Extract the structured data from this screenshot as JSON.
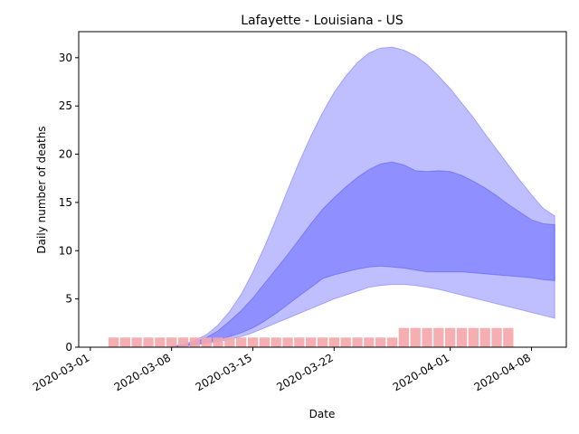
{
  "chart_data": {
    "type": "area",
    "title": "Lafayette - Louisiana - US",
    "xlabel": "Date",
    "ylabel": "Daily number of deaths",
    "x_ticks": [
      "2020-03-01",
      "2020-03-08",
      "2020-03-15",
      "2020-03-22",
      "2020-04-01",
      "2020-04-08"
    ],
    "y_ticks": [
      0,
      5,
      10,
      15,
      20,
      25,
      30
    ],
    "xlim": [
      "2020-02-29",
      "2020-04-11"
    ],
    "ylim": [
      0,
      32.7
    ],
    "grid": false,
    "colors": {
      "band": "#0000ff",
      "bars": "#f4a6ab"
    },
    "bars": {
      "dates": [
        "2020-03-03",
        "2020-03-04",
        "2020-03-05",
        "2020-03-06",
        "2020-03-07",
        "2020-03-08",
        "2020-03-09",
        "2020-03-10",
        "2020-03-11",
        "2020-03-12",
        "2020-03-13",
        "2020-03-14",
        "2020-03-15",
        "2020-03-16",
        "2020-03-17",
        "2020-03-18",
        "2020-03-19",
        "2020-03-20",
        "2020-03-21",
        "2020-03-22",
        "2020-03-23",
        "2020-03-24",
        "2020-03-25",
        "2020-03-26",
        "2020-03-27",
        "2020-03-28",
        "2020-03-29",
        "2020-03-30",
        "2020-03-31",
        "2020-04-01",
        "2020-04-02",
        "2020-04-03",
        "2020-04-04",
        "2020-04-05",
        "2020-04-06"
      ],
      "values": [
        1,
        1,
        1,
        1,
        1,
        1,
        1,
        1,
        1,
        1,
        1,
        1,
        1,
        1,
        1,
        1,
        1,
        1,
        1,
        1,
        1,
        1,
        1,
        1,
        1,
        2,
        2,
        2,
        2,
        2,
        2,
        2,
        2,
        2,
        2
      ]
    },
    "bands": [
      {
        "dates": [
          "2020-03-08",
          "2020-03-09",
          "2020-03-10",
          "2020-03-11",
          "2020-03-12",
          "2020-03-13",
          "2020-03-14",
          "2020-03-15",
          "2020-03-16",
          "2020-03-17",
          "2020-03-18",
          "2020-03-19",
          "2020-03-20",
          "2020-03-21",
          "2020-03-22",
          "2020-03-23",
          "2020-03-24",
          "2020-03-25",
          "2020-03-26",
          "2020-03-27",
          "2020-03-28",
          "2020-03-29",
          "2020-03-30",
          "2020-03-31",
          "2020-04-01",
          "2020-04-02",
          "2020-04-03",
          "2020-04-04",
          "2020-04-05",
          "2020-04-06",
          "2020-04-07",
          "2020-04-08",
          "2020-04-09",
          "2020-04-10"
        ],
        "lower": [
          0,
          0.1,
          0.2,
          0.4,
          0.6,
          0.8,
          1.1,
          1.5,
          2.0,
          2.5,
          3.0,
          3.5,
          4.0,
          4.5,
          5.0,
          5.4,
          5.8,
          6.2,
          6.4,
          6.5,
          6.5,
          6.4,
          6.2,
          6.0,
          5.7,
          5.4,
          5.1,
          4.8,
          4.5,
          4.2,
          3.9,
          3.6,
          3.3,
          3.0
        ],
        "upper": [
          0.1,
          0.3,
          0.7,
          1.3,
          2.3,
          3.7,
          5.5,
          7.8,
          10.4,
          13.3,
          16.3,
          19.2,
          21.9,
          24.3,
          26.4,
          28.1,
          29.5,
          30.5,
          31.0,
          31.1,
          30.8,
          30.2,
          29.3,
          28.1,
          26.8,
          25.3,
          23.8,
          22.1,
          20.5,
          18.9,
          17.3,
          15.8,
          14.4,
          13.6
        ]
      },
      {
        "dates": [
          "2020-03-08",
          "2020-03-09",
          "2020-03-10",
          "2020-03-11",
          "2020-03-12",
          "2020-03-13",
          "2020-03-14",
          "2020-03-15",
          "2020-03-16",
          "2020-03-17",
          "2020-03-18",
          "2020-03-19",
          "2020-03-20",
          "2020-03-21",
          "2020-03-22",
          "2020-03-23",
          "2020-03-24",
          "2020-03-25",
          "2020-03-26",
          "2020-03-27",
          "2020-03-28",
          "2020-03-29",
          "2020-03-30",
          "2020-03-31",
          "2020-04-01",
          "2020-04-02",
          "2020-04-03",
          "2020-04-04",
          "2020-04-05",
          "2020-04-06",
          "2020-04-07",
          "2020-04-08",
          "2020-04-09",
          "2020-04-10"
        ],
        "lower": [
          0,
          0.1,
          0.3,
          0.5,
          0.8,
          1.1,
          1.5,
          2.0,
          2.7,
          3.5,
          4.4,
          5.3,
          6.2,
          7.1,
          7.5,
          7.8,
          8.1,
          8.3,
          8.4,
          8.3,
          8.2,
          8.0,
          7.8,
          7.8,
          7.8,
          7.8,
          7.7,
          7.6,
          7.5,
          7.4,
          7.3,
          7.2,
          7.0,
          6.9
        ],
        "upper": [
          0.05,
          0.2,
          0.5,
          1.0,
          1.7,
          2.7,
          3.8,
          5.1,
          6.6,
          8.1,
          9.6,
          11.2,
          12.8,
          14.3,
          15.5,
          16.6,
          17.6,
          18.4,
          19.0,
          19.2,
          18.9,
          18.3,
          18.2,
          18.3,
          18.2,
          17.8,
          17.2,
          16.5,
          15.7,
          14.8,
          14.0,
          13.2,
          12.8,
          12.7
        ]
      }
    ]
  }
}
